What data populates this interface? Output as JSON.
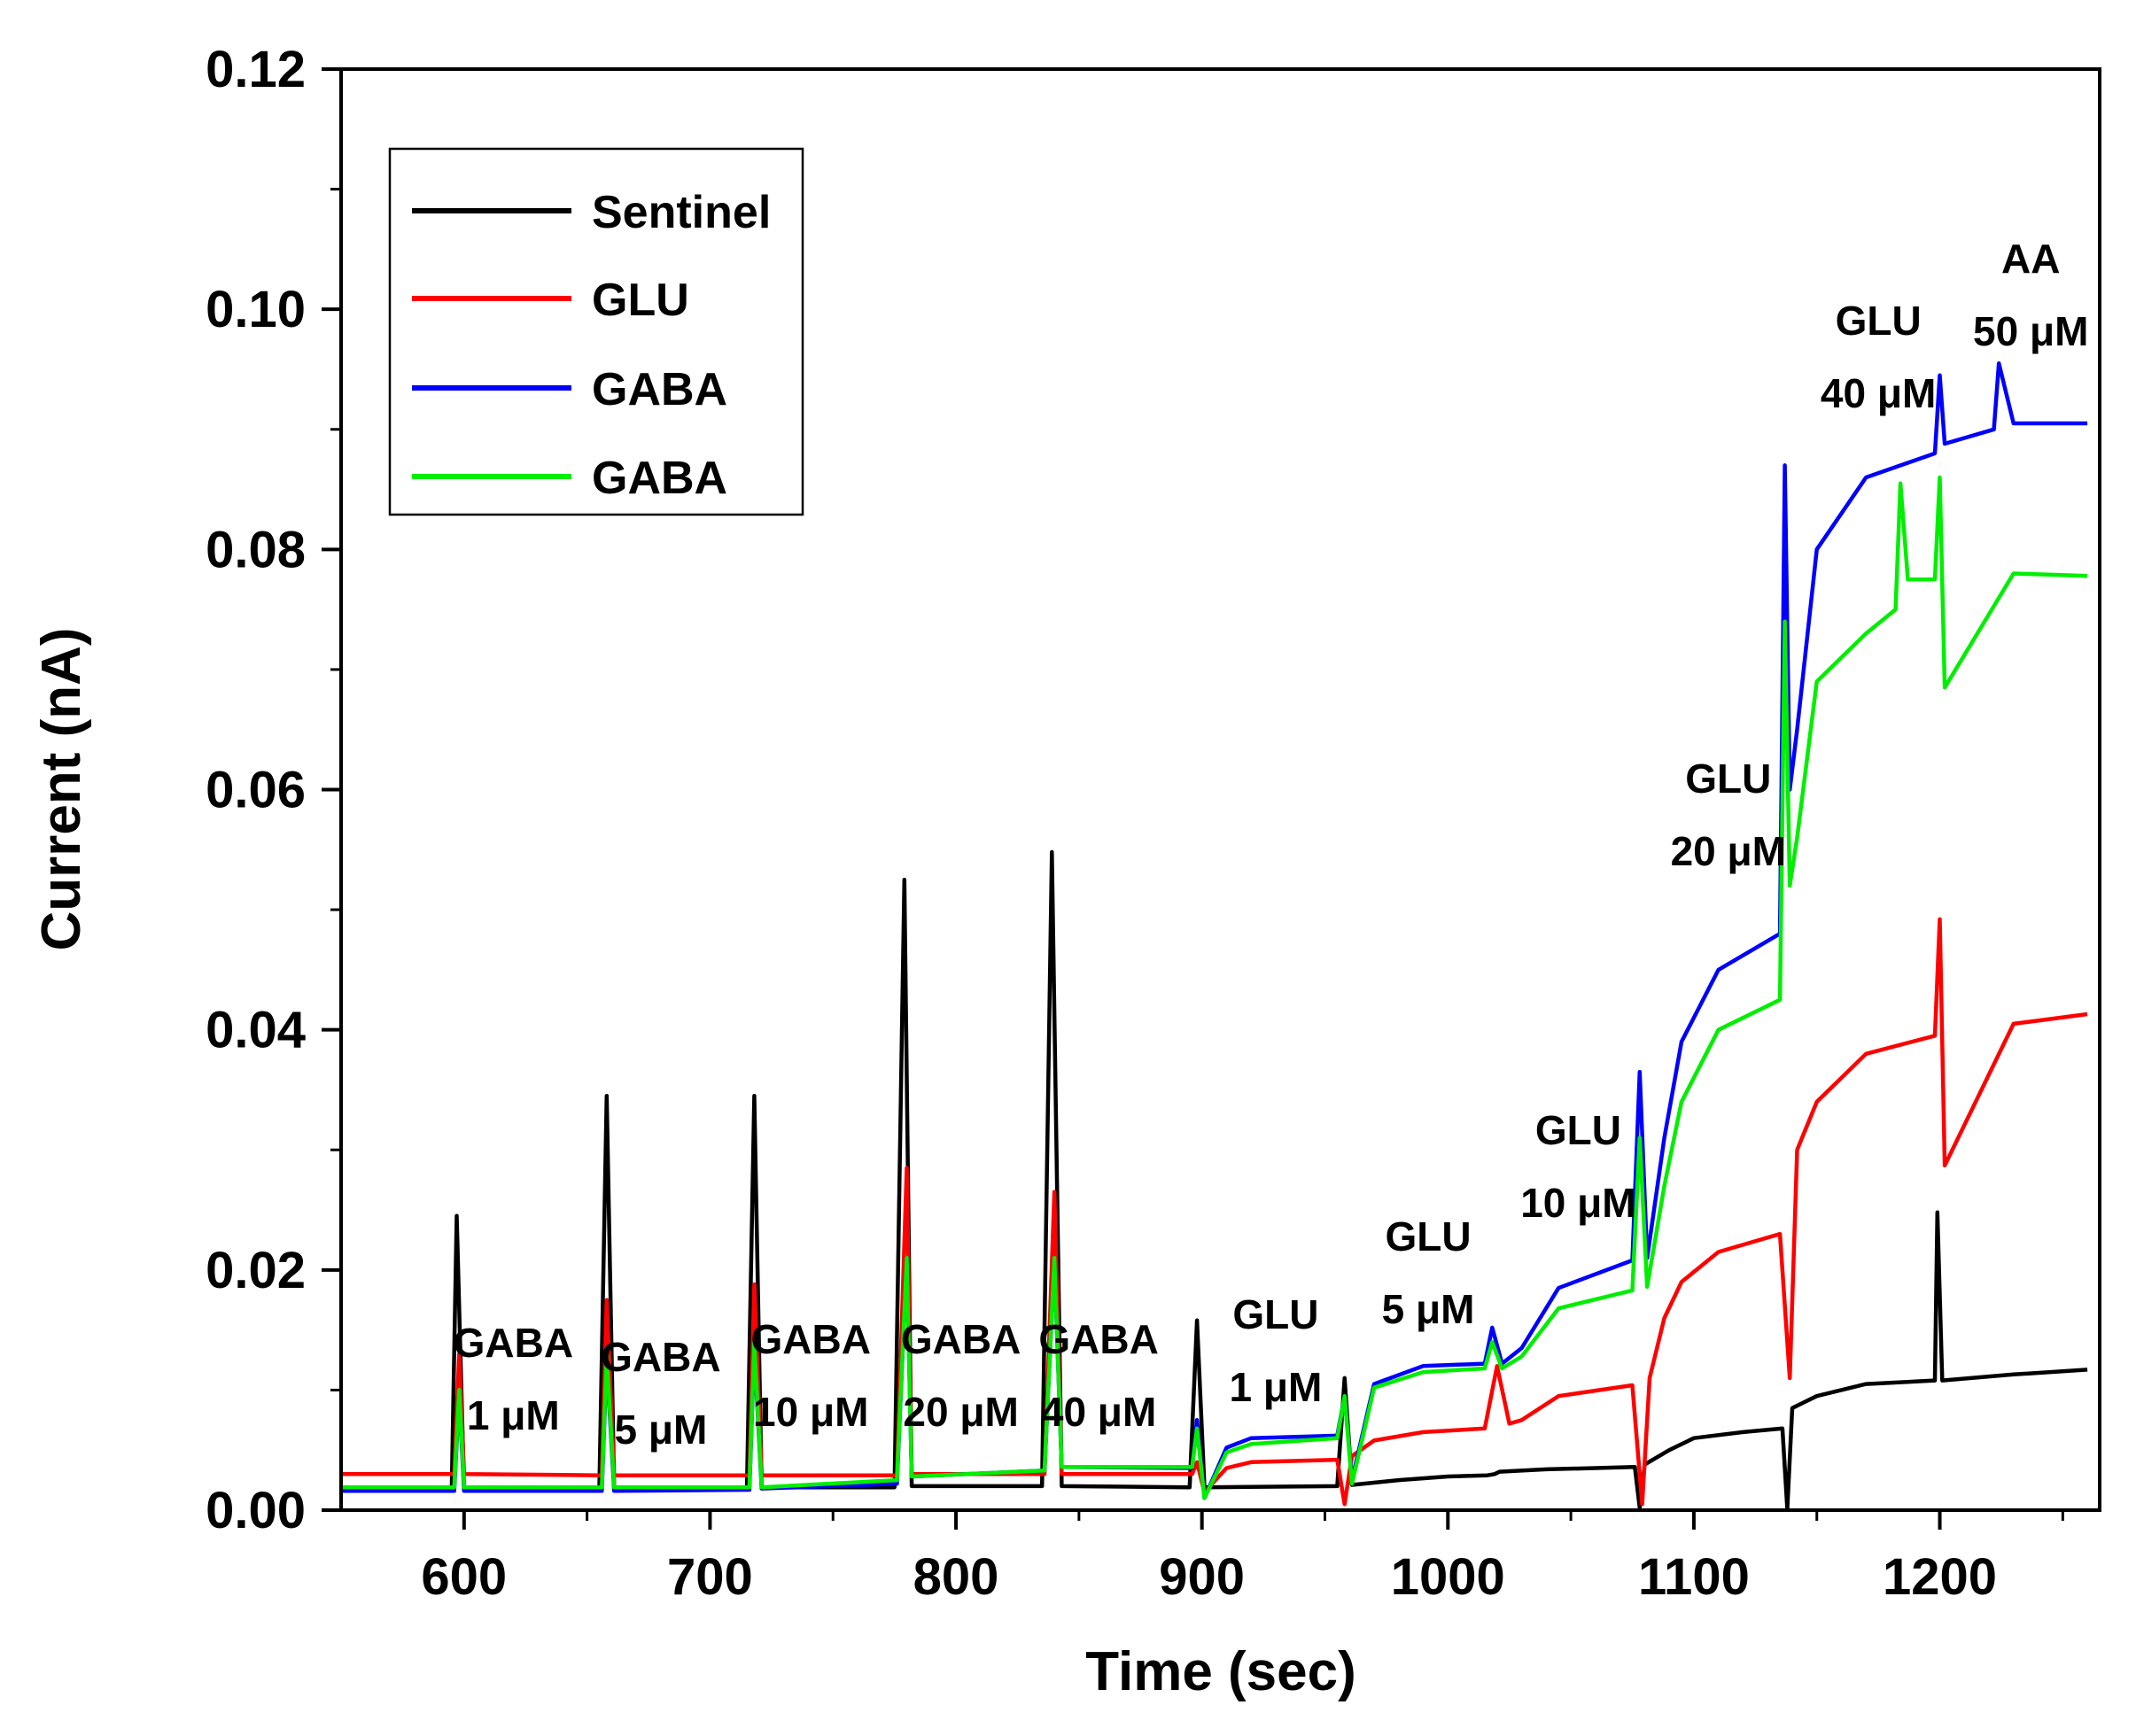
{
  "chart_data": {
    "type": "line",
    "title": "",
    "xlabel": "Time (sec)",
    "ylabel": "Current (nA)",
    "xlim": [
      550,
      1265
    ],
    "ylim": [
      0,
      0.12
    ],
    "x_ticks": [
      600,
      700,
      800,
      900,
      1000,
      1100,
      1200
    ],
    "x_tick_labels": [
      "600",
      "700",
      "800",
      "900",
      "1000",
      "1100",
      "1200"
    ],
    "y_ticks": [
      0,
      0.02,
      0.04,
      0.06,
      0.08,
      0.1,
      0.12
    ],
    "y_tick_labels": [
      "0.00",
      "0.02",
      "0.04",
      "0.06",
      "0.08",
      "0.10",
      "0.12"
    ],
    "legend_position": "top-left",
    "series": [
      {
        "name": "Sentinel",
        "color": "#000000",
        "x": [
          550,
          595,
          597,
          600,
          655,
          658,
          661,
          715,
          718,
          721,
          775,
          779,
          782,
          835,
          839,
          843,
          895,
          898,
          901,
          955,
          958,
          961,
          980,
          1000,
          1016,
          1019,
          1021,
          1040,
          1060,
          1076,
          1078,
          1080,
          1090,
          1100,
          1120,
          1136,
          1138,
          1140,
          1150,
          1170,
          1198,
          1199,
          1201,
          1230,
          1260
        ],
        "values": [
          0.0018,
          0.0018,
          0.0245,
          0.0018,
          0.0018,
          0.0345,
          0.0019,
          0.0019,
          0.0345,
          0.0019,
          0.0019,
          0.0525,
          0.002,
          0.002,
          0.0548,
          0.002,
          0.0019,
          0.0158,
          0.0019,
          0.002,
          0.011,
          0.0021,
          0.0025,
          0.0028,
          0.0029,
          0.003,
          0.0032,
          0.0034,
          0.0035,
          0.0036,
          0.0002,
          0.0038,
          0.005,
          0.006,
          0.0065,
          0.0068,
          0.0001,
          0.0085,
          0.0095,
          0.0105,
          0.0108,
          0.0248,
          0.0108,
          0.0113,
          0.0117
        ]
      },
      {
        "name": "GLU",
        "color": "#ff0000",
        "x": [
          550,
          596,
          598,
          600,
          656,
          658,
          661,
          716,
          718,
          721,
          776,
          780,
          782,
          836,
          840,
          843,
          896,
          898,
          901,
          910,
          920,
          955,
          958,
          961,
          970,
          990,
          1015,
          1020,
          1025,
          1030,
          1045,
          1075,
          1079,
          1082,
          1088,
          1095,
          1110,
          1135,
          1139,
          1142,
          1150,
          1170,
          1198,
          1200,
          1202,
          1230,
          1260
        ],
        "values": [
          0.003,
          0.003,
          0.013,
          0.003,
          0.0029,
          0.0175,
          0.0029,
          0.0029,
          0.0188,
          0.0029,
          0.0029,
          0.0285,
          0.003,
          0.003,
          0.0265,
          0.003,
          0.003,
          0.004,
          0.0015,
          0.0035,
          0.004,
          0.0042,
          0.0005,
          0.0045,
          0.0058,
          0.0065,
          0.0068,
          0.012,
          0.0072,
          0.0075,
          0.0095,
          0.0104,
          0.0005,
          0.011,
          0.016,
          0.019,
          0.0215,
          0.023,
          0.011,
          0.03,
          0.034,
          0.038,
          0.0395,
          0.0492,
          0.0287,
          0.0405,
          0.0413
        ]
      },
      {
        "name": "GABA",
        "color": "#0000ff",
        "x": [
          550,
          596,
          598,
          600,
          656,
          658,
          661,
          716,
          718,
          721,
          776,
          780,
          782,
          836,
          840,
          843,
          896,
          898,
          901,
          910,
          920,
          955,
          958,
          961,
          970,
          990,
          1015,
          1018,
          1022,
          1030,
          1045,
          1075,
          1078,
          1081,
          1088,
          1095,
          1110,
          1135,
          1137,
          1139,
          1142,
          1150,
          1170,
          1198,
          1200,
          1202,
          1222,
          1224,
          1230,
          1260
        ],
        "values": [
          0.0016,
          0.0016,
          0.0096,
          0.0016,
          0.0016,
          0.0125,
          0.0016,
          0.0017,
          0.0135,
          0.0018,
          0.0022,
          0.021,
          0.0028,
          0.0033,
          0.0208,
          0.0036,
          0.0035,
          0.0075,
          0.001,
          0.0052,
          0.006,
          0.0062,
          0.0095,
          0.0025,
          0.0105,
          0.012,
          0.0122,
          0.0152,
          0.0122,
          0.0135,
          0.0185,
          0.0208,
          0.0365,
          0.021,
          0.031,
          0.039,
          0.045,
          0.048,
          0.087,
          0.06,
          0.065,
          0.08,
          0.086,
          0.088,
          0.0945,
          0.0888,
          0.09,
          0.0955,
          0.0905,
          0.0905
        ]
      },
      {
        "name": "GABA",
        "color": "#00ee00",
        "x": [
          550,
          596,
          598,
          600,
          656,
          658,
          661,
          716,
          718,
          721,
          776,
          780,
          782,
          836,
          840,
          843,
          896,
          898,
          901,
          910,
          920,
          955,
          958,
          961,
          970,
          990,
          1015,
          1018,
          1022,
          1030,
          1045,
          1075,
          1078,
          1081,
          1088,
          1095,
          1110,
          1135,
          1137,
          1139,
          1142,
          1150,
          1170,
          1182,
          1184,
          1187,
          1198,
          1200,
          1202,
          1230,
          1260
        ],
        "values": [
          0.0019,
          0.0019,
          0.01,
          0.0019,
          0.0019,
          0.013,
          0.0019,
          0.0019,
          0.014,
          0.0019,
          0.0025,
          0.021,
          0.0028,
          0.0033,
          0.021,
          0.0036,
          0.0036,
          0.0068,
          0.001,
          0.0048,
          0.0055,
          0.006,
          0.0095,
          0.0022,
          0.0102,
          0.0115,
          0.0118,
          0.014,
          0.0118,
          0.0128,
          0.0168,
          0.0183,
          0.031,
          0.0186,
          0.027,
          0.034,
          0.04,
          0.0425,
          0.074,
          0.052,
          0.056,
          0.069,
          0.073,
          0.075,
          0.0855,
          0.0775,
          0.0775,
          0.086,
          0.0685,
          0.078,
          0.0778
        ]
      }
    ],
    "annotations": [
      {
        "lines": [
          "GABA",
          "1 μM"
        ],
        "x": 620
      },
      {
        "lines": [
          "GABA",
          "5 μM"
        ],
        "x": 680
      },
      {
        "lines": [
          "GABA",
          "10 μM"
        ],
        "x": 741
      },
      {
        "lines": [
          "GABA",
          "20 μM"
        ],
        "x": 802
      },
      {
        "lines": [
          "GABA",
          "40 μM"
        ],
        "x": 858
      },
      {
        "lines": [
          "GLU",
          "1 μM"
        ],
        "x": 930
      },
      {
        "lines": [
          "GLU",
          "5 μM"
        ],
        "x": 992
      },
      {
        "lines": [
          "GLU",
          "10 μM"
        ],
        "x": 1053
      },
      {
        "lines": [
          "GLU",
          "20 μM"
        ],
        "x": 1114
      },
      {
        "lines": [
          "GLU",
          "40 μM"
        ],
        "x": 1175
      },
      {
        "lines": [
          "AA",
          "50 μM"
        ],
        "x": 1237
      }
    ]
  }
}
